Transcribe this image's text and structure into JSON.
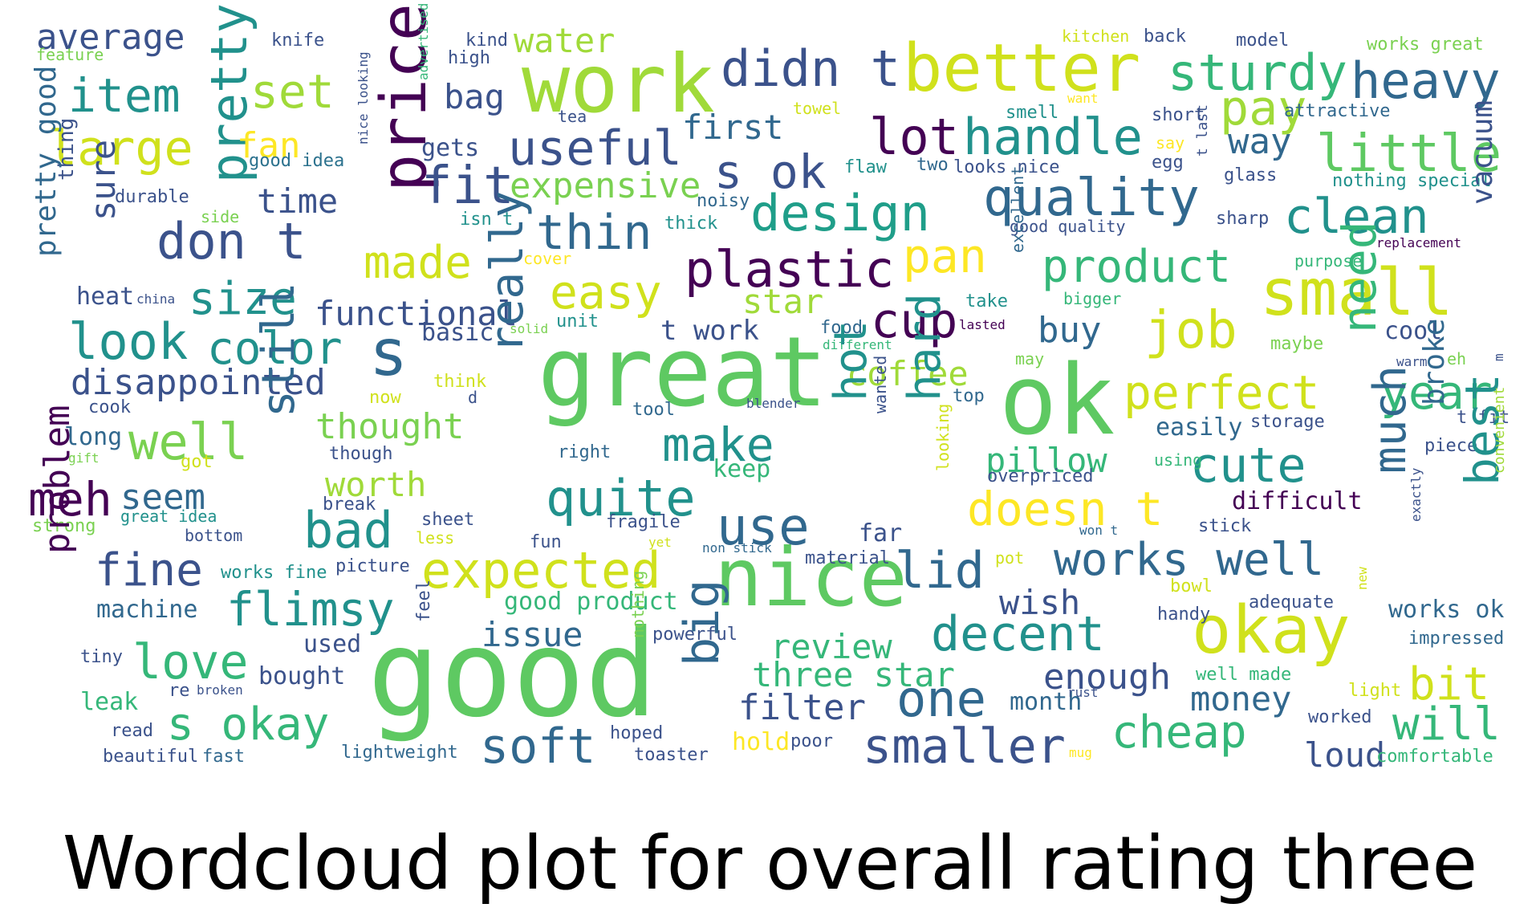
{
  "title": "Wordcloud plot for overall rating three",
  "wordcloud": {
    "palette": "viridis",
    "words": [
      {
        "text": "good",
        "color": "#5ec962"
      },
      {
        "text": "great",
        "color": "#5ec962"
      },
      {
        "text": "ok",
        "color": "#5ec962"
      },
      {
        "text": "nice",
        "color": "#5ec962"
      },
      {
        "text": "work",
        "color": "#a0da39"
      },
      {
        "text": "better",
        "color": "#d0e11c"
      },
      {
        "text": "okay",
        "color": "#d0e11c"
      },
      {
        "text": "price",
        "color": "#440154"
      },
      {
        "text": "small",
        "color": "#d0e11c"
      },
      {
        "text": "s",
        "color": "#31688e"
      },
      {
        "text": "didn t",
        "color": "#3b528b"
      },
      {
        "text": "sturdy",
        "color": "#35b779"
      },
      {
        "text": "heavy",
        "color": "#31688e"
      },
      {
        "text": "item",
        "color": "#21918c"
      },
      {
        "text": "pretty",
        "color": "#21918c"
      },
      {
        "text": "set",
        "color": "#a0da39"
      },
      {
        "text": "water",
        "color": "#a0da39"
      },
      {
        "text": "average",
        "color": "#3b528b"
      },
      {
        "text": "knife",
        "color": "#3b528b"
      },
      {
        "text": "kind",
        "color": "#3b528b"
      },
      {
        "text": "high",
        "color": "#3b528b"
      },
      {
        "text": "kitchen",
        "color": "#d0e11c"
      },
      {
        "text": "back",
        "color": "#3b528b"
      },
      {
        "text": "model",
        "color": "#3b528b"
      },
      {
        "text": "works great",
        "color": "#7ad151"
      },
      {
        "text": "feature",
        "color": "#7ad151"
      },
      {
        "text": "advertised",
        "color": "#35b779"
      },
      {
        "text": "large",
        "color": "#d0e11c"
      },
      {
        "text": "fan",
        "color": "#fde725"
      },
      {
        "text": "bag",
        "color": "#3b528b"
      },
      {
        "text": "useful",
        "color": "#3b528b"
      },
      {
        "text": "first",
        "color": "#31688e"
      },
      {
        "text": "lot",
        "color": "#440154"
      },
      {
        "text": "handle",
        "color": "#21918c"
      },
      {
        "text": "pay",
        "color": "#a0da39"
      },
      {
        "text": "little",
        "color": "#5ec962"
      },
      {
        "text": "way",
        "color": "#31688e"
      },
      {
        "text": "tea",
        "color": "#3b528b"
      },
      {
        "text": "towel",
        "color": "#d0e11c"
      },
      {
        "text": "want",
        "color": "#fde725"
      },
      {
        "text": "smell",
        "color": "#21918c"
      },
      {
        "text": "short",
        "color": "#3b528b"
      },
      {
        "text": "attractive",
        "color": "#31688e"
      },
      {
        "text": "good idea",
        "color": "#2c728e"
      },
      {
        "text": "gets",
        "color": "#3b528b"
      },
      {
        "text": "s ok",
        "color": "#3b528b"
      },
      {
        "text": "fit",
        "color": "#3b528b"
      },
      {
        "text": "expensive",
        "color": "#7ad151"
      },
      {
        "text": "design",
        "color": "#1f9e89"
      },
      {
        "text": "quality",
        "color": "#31688e"
      },
      {
        "text": "clean",
        "color": "#21918c"
      },
      {
        "text": "flaw",
        "color": "#21918c"
      },
      {
        "text": "two",
        "color": "#31688e"
      },
      {
        "text": "looks nice",
        "color": "#3b528b"
      },
      {
        "text": "egg",
        "color": "#3b528b"
      },
      {
        "text": "say",
        "color": "#fde725"
      },
      {
        "text": "glass",
        "color": "#3b528b"
      },
      {
        "text": "nothing special",
        "color": "#21918c"
      },
      {
        "text": "t last",
        "color": "#3b528b"
      },
      {
        "text": "nice looking",
        "color": "#3b528b"
      },
      {
        "text": "thing",
        "color": "#3b528b"
      },
      {
        "text": "durable",
        "color": "#3b528b"
      },
      {
        "text": "time",
        "color": "#3b528b"
      },
      {
        "text": "side",
        "color": "#7ad151"
      },
      {
        "text": "isn t",
        "color": "#21918c"
      },
      {
        "text": "noisy",
        "color": "#31688e"
      },
      {
        "text": "thick",
        "color": "#21918c"
      },
      {
        "text": "thin",
        "color": "#31688e"
      },
      {
        "text": "good quality",
        "color": "#3b528b"
      },
      {
        "text": "sharp",
        "color": "#3b528b"
      },
      {
        "text": "replacement",
        "color": "#440154"
      },
      {
        "text": "vacuum",
        "color": "#3b528b"
      },
      {
        "text": "don t",
        "color": "#3b528b"
      },
      {
        "text": "sure",
        "color": "#3b528b"
      },
      {
        "text": "pretty good",
        "color": "#31688e"
      },
      {
        "text": "made",
        "color": "#d0e11c"
      },
      {
        "text": "plastic",
        "color": "#440154"
      },
      {
        "text": "pan",
        "color": "#fde725"
      },
      {
        "text": "product",
        "color": "#35b779"
      },
      {
        "text": "cover",
        "color": "#fde725"
      },
      {
        "text": "purpose",
        "color": "#35b779"
      },
      {
        "text": "bigger",
        "color": "#35b779"
      },
      {
        "text": "excellent",
        "color": "#31688e"
      },
      {
        "text": "size",
        "color": "#21918c"
      },
      {
        "text": "heat",
        "color": "#3b528b"
      },
      {
        "text": "china",
        "color": "#3b528b"
      },
      {
        "text": "easy",
        "color": "#d0e11c"
      },
      {
        "text": "star",
        "color": "#a0da39"
      },
      {
        "text": "solid",
        "color": "#7ad151"
      },
      {
        "text": "take",
        "color": "#21918c"
      },
      {
        "text": "functional",
        "color": "#3b528b"
      },
      {
        "text": "unit",
        "color": "#21918c"
      },
      {
        "text": "basic",
        "color": "#3b528b"
      },
      {
        "text": "t work",
        "color": "#3b528b"
      },
      {
        "text": "cup",
        "color": "#440154"
      },
      {
        "text": "lasted",
        "color": "#440154"
      },
      {
        "text": "food",
        "color": "#31688e"
      },
      {
        "text": "job",
        "color": "#d0e11c"
      },
      {
        "text": "buy",
        "color": "#31688e"
      },
      {
        "text": "maybe",
        "color": "#7ad151"
      },
      {
        "text": "cool",
        "color": "#3b528b"
      },
      {
        "text": "look",
        "color": "#21918c"
      },
      {
        "text": "color",
        "color": "#21918c"
      },
      {
        "text": "different",
        "color": "#35b779"
      },
      {
        "text": "may",
        "color": "#7ad151"
      },
      {
        "text": "eh",
        "color": "#7ad151"
      },
      {
        "text": "warm",
        "color": "#3b528b"
      },
      {
        "text": "disappointed",
        "color": "#3b528b"
      },
      {
        "text": "really",
        "color": "#31688e"
      },
      {
        "text": "coffee",
        "color": "#a0da39"
      },
      {
        "text": "perfect",
        "color": "#d0e11c"
      },
      {
        "text": "need",
        "color": "#35b779"
      },
      {
        "text": "year",
        "color": "#35b779"
      },
      {
        "text": "m",
        "color": "#3b528b"
      },
      {
        "text": "think",
        "color": "#d0e11c"
      },
      {
        "text": "now",
        "color": "#d0e11c"
      },
      {
        "text": "d",
        "color": "#3b528b"
      },
      {
        "text": "hot",
        "color": "#21918c"
      },
      {
        "text": "hard",
        "color": "#21918c"
      },
      {
        "text": "cook",
        "color": "#3b528b"
      },
      {
        "text": "tool",
        "color": "#31688e"
      },
      {
        "text": "blender",
        "color": "#3b528b"
      },
      {
        "text": "top",
        "color": "#31688e"
      },
      {
        "text": "easily",
        "color": "#31688e"
      },
      {
        "text": "storage",
        "color": "#3b528b"
      },
      {
        "text": "t fit",
        "color": "#3b528b"
      },
      {
        "text": "long",
        "color": "#31688e"
      },
      {
        "text": "well",
        "color": "#7ad151"
      },
      {
        "text": "thought",
        "color": "#7ad151"
      },
      {
        "text": "make",
        "color": "#21918c"
      },
      {
        "text": "wanted",
        "color": "#3b528b"
      },
      {
        "text": "pillow",
        "color": "#35b779"
      },
      {
        "text": "cute",
        "color": "#21918c"
      },
      {
        "text": "broke",
        "color": "#31688e"
      },
      {
        "text": "piece",
        "color": "#3b528b"
      },
      {
        "text": "gift",
        "color": "#7ad151"
      },
      {
        "text": "got",
        "color": "#d0e11c"
      },
      {
        "text": "though",
        "color": "#3b528b"
      },
      {
        "text": "right",
        "color": "#31688e"
      },
      {
        "text": "keep",
        "color": "#35b779"
      },
      {
        "text": "using",
        "color": "#35b779"
      },
      {
        "text": "meh",
        "color": "#440154"
      },
      {
        "text": "seem",
        "color": "#31688e"
      },
      {
        "text": "still",
        "color": "#31688e"
      },
      {
        "text": "worth",
        "color": "#a0da39"
      },
      {
        "text": "quite",
        "color": "#21918c"
      },
      {
        "text": "looking",
        "color": "#d0e11c"
      },
      {
        "text": "overpriced",
        "color": "#3b528b"
      },
      {
        "text": "great idea",
        "color": "#21918c"
      },
      {
        "text": "break",
        "color": "#3b528b"
      },
      {
        "text": "doesn t",
        "color": "#fde725"
      },
      {
        "text": "difficult",
        "color": "#440154"
      },
      {
        "text": "best",
        "color": "#21918c"
      },
      {
        "text": "convenient",
        "color": "#a0da39"
      },
      {
        "text": "strong",
        "color": "#7ad151"
      },
      {
        "text": "bottom",
        "color": "#3b528b"
      },
      {
        "text": "bad",
        "color": "#21918c"
      },
      {
        "text": "sheet",
        "color": "#3b528b"
      },
      {
        "text": "fragile",
        "color": "#3b528b"
      },
      {
        "text": "use",
        "color": "#31688e"
      },
      {
        "text": "far",
        "color": "#3b528b"
      },
      {
        "text": "won t",
        "color": "#31688e"
      },
      {
        "text": "stick",
        "color": "#3b528b"
      },
      {
        "text": "exactly",
        "color": "#3b528b"
      },
      {
        "text": "less",
        "color": "#d0e11c"
      },
      {
        "text": "fun",
        "color": "#3b528b"
      },
      {
        "text": "yet",
        "color": "#d0e11c"
      },
      {
        "text": "non stick",
        "color": "#31688e"
      },
      {
        "text": "much",
        "color": "#31688e"
      },
      {
        "text": "problem",
        "color": "#440154"
      },
      {
        "text": "fine",
        "color": "#3b528b"
      },
      {
        "text": "works fine",
        "color": "#21918c"
      },
      {
        "text": "picture",
        "color": "#3b528b"
      },
      {
        "text": "expected",
        "color": "#d0e11c"
      },
      {
        "text": "material",
        "color": "#3b528b"
      },
      {
        "text": "lid",
        "color": "#31688e"
      },
      {
        "text": "pot",
        "color": "#d0e11c"
      },
      {
        "text": "works well",
        "color": "#31688e"
      },
      {
        "text": "machine",
        "color": "#31688e"
      },
      {
        "text": "flimsy",
        "color": "#21918c"
      },
      {
        "text": "good product",
        "color": "#35b779"
      },
      {
        "text": "wish",
        "color": "#3b528b"
      },
      {
        "text": "bowl",
        "color": "#d0e11c"
      },
      {
        "text": "adequate",
        "color": "#3b528b"
      },
      {
        "text": "works ok",
        "color": "#31688e"
      },
      {
        "text": "new",
        "color": "#d0e11c"
      },
      {
        "text": "handy",
        "color": "#3b528b"
      },
      {
        "text": "impressed",
        "color": "#31688e"
      },
      {
        "text": "issue",
        "color": "#31688e"
      },
      {
        "text": "feel",
        "color": "#3b528b"
      },
      {
        "text": "powerful",
        "color": "#3b528b"
      },
      {
        "text": "decent",
        "color": "#21918c"
      },
      {
        "text": "tiny",
        "color": "#3b528b"
      },
      {
        "text": "love",
        "color": "#35b779"
      },
      {
        "text": "used",
        "color": "#3b528b"
      },
      {
        "text": "review",
        "color": "#35b779"
      },
      {
        "text": "nothing",
        "color": "#7ad151"
      },
      {
        "text": "bought",
        "color": "#3b528b"
      },
      {
        "text": "big",
        "color": "#31688e"
      },
      {
        "text": "three star",
        "color": "#35b779"
      },
      {
        "text": "enough",
        "color": "#3b528b"
      },
      {
        "text": "well made",
        "color": "#35b779"
      },
      {
        "text": "bit",
        "color": "#d0e11c"
      },
      {
        "text": "re",
        "color": "#3b528b"
      },
      {
        "text": "broken",
        "color": "#3b528b"
      },
      {
        "text": "leak",
        "color": "#35b779"
      },
      {
        "text": "filter",
        "color": "#3b528b"
      },
      {
        "text": "one",
        "color": "#31688e"
      },
      {
        "text": "month",
        "color": "#31688e"
      },
      {
        "text": "money",
        "color": "#31688e"
      },
      {
        "text": "rust",
        "color": "#3b528b"
      },
      {
        "text": "light",
        "color": "#d0e11c"
      },
      {
        "text": "s okay",
        "color": "#35b779"
      },
      {
        "text": "will",
        "color": "#35b779"
      },
      {
        "text": "worked",
        "color": "#3b528b"
      },
      {
        "text": "read",
        "color": "#3b528b"
      },
      {
        "text": "cheap",
        "color": "#35b779"
      },
      {
        "text": "soft",
        "color": "#31688e"
      },
      {
        "text": "hoped",
        "color": "#3b528b"
      },
      {
        "text": "smaller",
        "color": "#3b528b"
      },
      {
        "text": "hold",
        "color": "#fde725"
      },
      {
        "text": "poor",
        "color": "#3b528b"
      },
      {
        "text": "beautiful",
        "color": "#3b528b"
      },
      {
        "text": "fast",
        "color": "#31688e"
      },
      {
        "text": "lightweight",
        "color": "#31688e"
      },
      {
        "text": "toaster",
        "color": "#3b528b"
      },
      {
        "text": "mug",
        "color": "#fde725"
      },
      {
        "text": "loud",
        "color": "#3b528b"
      },
      {
        "text": "comfortable",
        "color": "#35b779"
      }
    ]
  }
}
